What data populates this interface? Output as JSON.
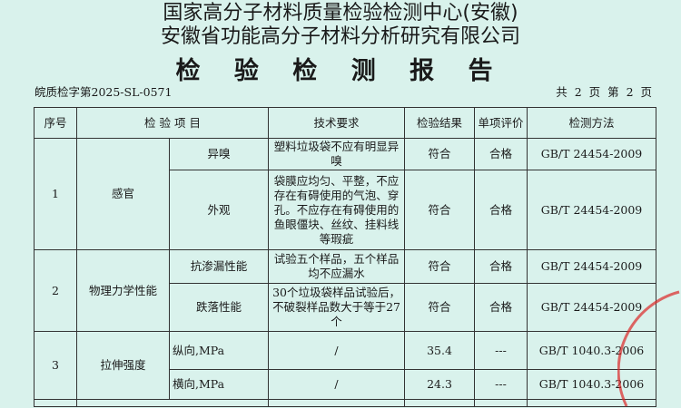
{
  "header": {
    "org1": "国家高分子材料质量检验检测中心(安徽)",
    "org2": "安徽省功能高分子材料分析研究有限公司",
    "title": "检 验 检 测 报 告",
    "report_no": "皖质检字第2025-SL-0571",
    "page": "共 2 页 第 2 页"
  },
  "table": {
    "columns": [
      "序号",
      "检 验 项 目",
      "技术要求",
      "检验结果",
      "单项评价",
      "检测方法"
    ],
    "groups": [
      {
        "no": "1",
        "category": "感官",
        "rows": [
          {
            "item": "异嗅",
            "req": "塑料垃圾袋不应有明显异嗅",
            "result": "符合",
            "eval": "合格",
            "method": "GB/T 24454-2009"
          },
          {
            "item": "外观",
            "req": "袋膜应均匀、平整，不应存在有碍使用的气泡、穿孔。不应存在有碍使用的鱼眼僵块、丝纹、挂料线等瑕疵",
            "result": "符合",
            "eval": "合格",
            "method": "GB/T 24454-2009"
          }
        ]
      },
      {
        "no": "2",
        "category": "物理力学性能",
        "rows": [
          {
            "item": "抗渗漏性能",
            "req": "试验五个样品，五个样品均不应漏水",
            "result": "符合",
            "eval": "合格",
            "method": "GB/T 24454-2009"
          },
          {
            "item": "跌落性能",
            "req": "30个垃圾袋样品试验后，不破裂样品数大于等于27个",
            "result": "符合",
            "eval": "合格",
            "method": "GB/T 24454-2009"
          }
        ]
      },
      {
        "no": "3",
        "category": "拉伸强度",
        "rows": [
          {
            "item": "纵向,MPa",
            "req": "/",
            "result": "35.4",
            "eval": "---",
            "method": "GB/T 1040.3-2006"
          },
          {
            "item": "横向,MPa",
            "req": "/",
            "result": "24.3",
            "eval": "---",
            "method": "GB/T 1040.3-2006"
          }
        ]
      }
    ]
  }
}
